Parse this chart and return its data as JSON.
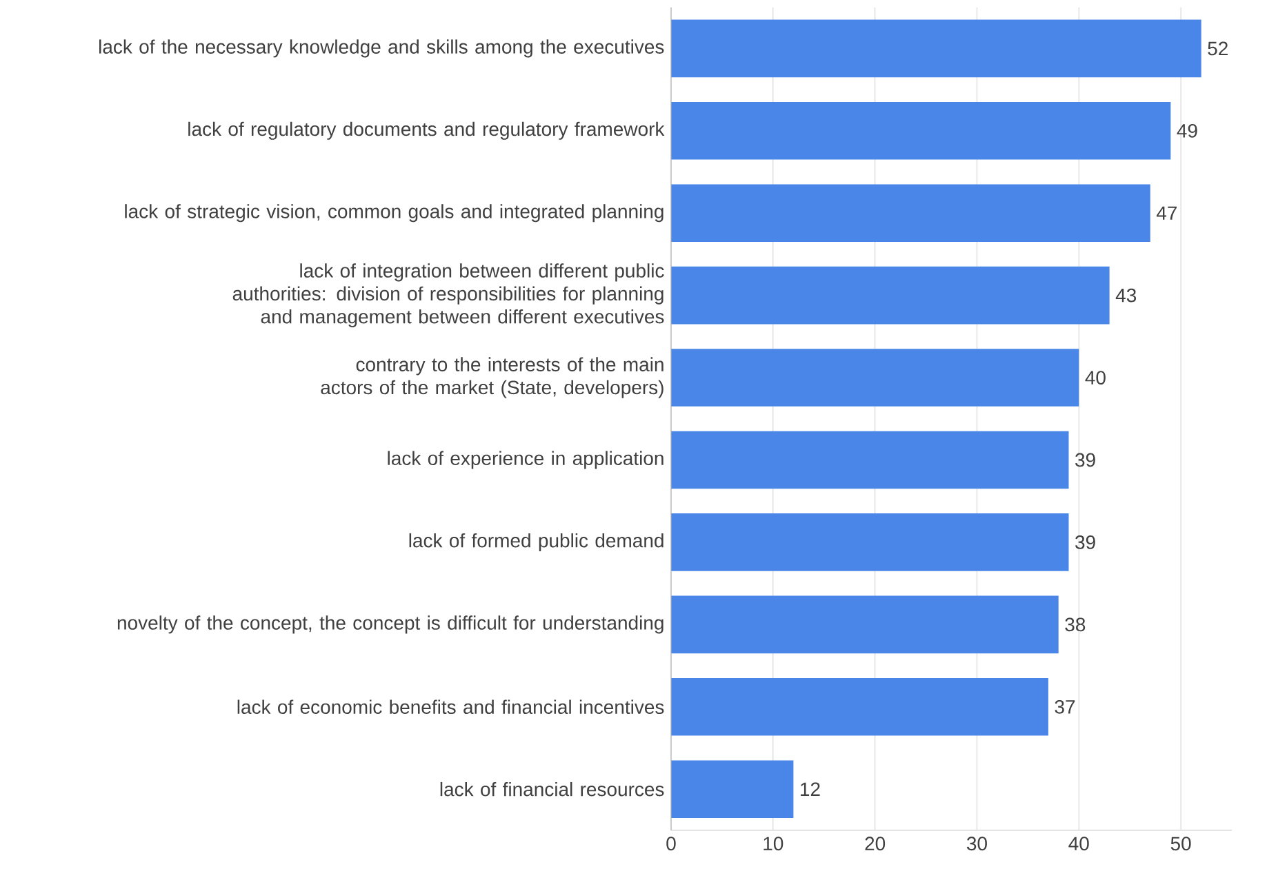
{
  "chart_data": {
    "type": "bar",
    "orientation": "horizontal",
    "categories": [
      "lack of the necessary knowledge and skills among the executives",
      "lack of regulatory documents and regulatory framework",
      "lack of strategic vision, common goals and integrated planning",
      "lack of integration between different public authorities: division of responsibilities for planning and management between different executives",
      "contrary to the interests of the main actors of the market (State, developers)",
      "lack of experience in application",
      "lack of formed public demand",
      "novelty of the concept, the concept is difficult for understanding",
      "lack of economic benefits and financial incentives",
      "lack of financial resources"
    ],
    "values": [
      52,
      49,
      47,
      43,
      40,
      39,
      39,
      38,
      37,
      12
    ],
    "color": "#4a86e8",
    "xlim": [
      0,
      55
    ],
    "xticks": [
      0,
      10,
      20,
      30,
      40,
      50
    ],
    "grid": "x",
    "data_labels": true
  }
}
